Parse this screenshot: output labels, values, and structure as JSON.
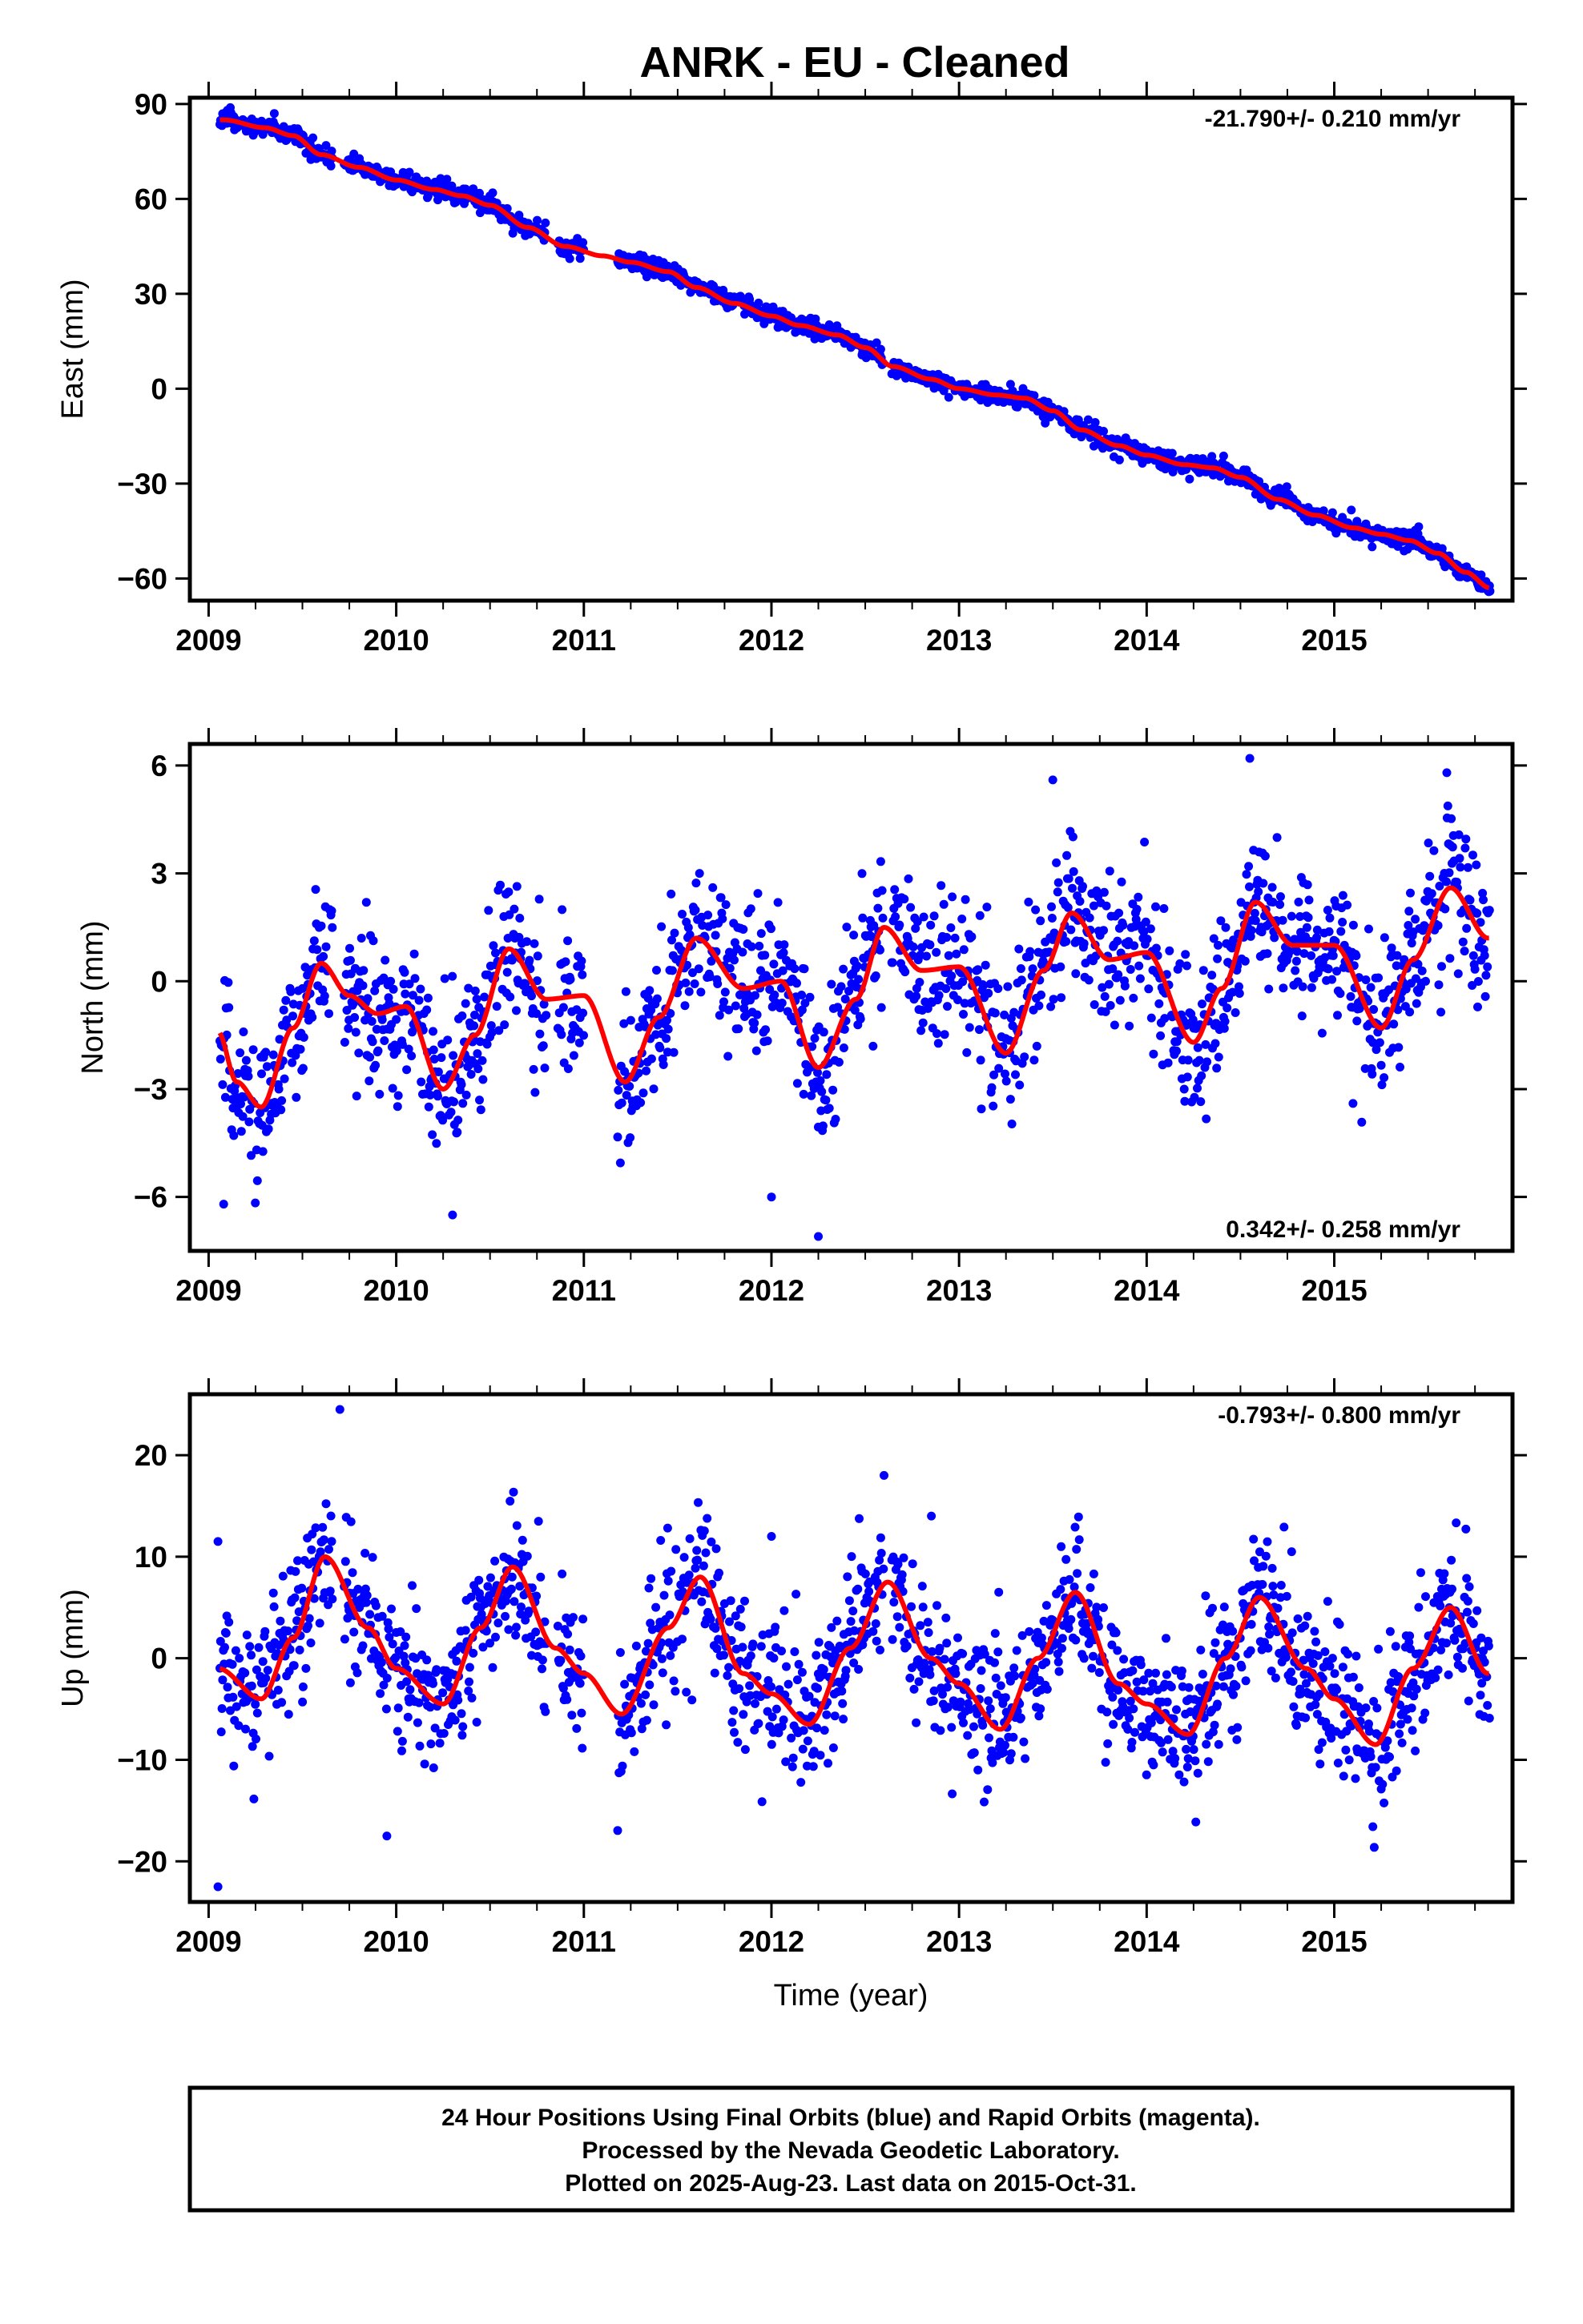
{
  "chart_data": {
    "type": "scatter",
    "title": "ANRK  - EU - Cleaned",
    "xlabel": "Time (year)",
    "xlim": [
      2008.9,
      2015.95
    ],
    "x_ticks": [
      "2009",
      "2010",
      "2011",
      "2012",
      "2013",
      "2014",
      "2015"
    ],
    "colors": {
      "points": "#0000ff",
      "fit": "#ff0000",
      "axes": "#000000"
    },
    "panels": [
      {
        "name": "east",
        "ylabel": "East (mm)",
        "ylim": [
          -67,
          92
        ],
        "y_ticks": [
          90,
          60,
          30,
          0,
          -30,
          -60
        ],
        "y_tick_labels": [
          "90",
          "60",
          "30",
          "0",
          "−30",
          "−60"
        ],
        "rate": "-21.790+/- 0.210 mm/yr",
        "rate_position": "top-right",
        "fit_knots": [
          [
            2009.08,
            85
          ],
          [
            2009.3,
            82.5
          ],
          [
            2009.45,
            80
          ],
          [
            2009.6,
            74
          ],
          [
            2009.8,
            70
          ],
          [
            2010.0,
            66
          ],
          [
            2010.2,
            63
          ],
          [
            2010.35,
            61
          ],
          [
            2010.5,
            58
          ],
          [
            2010.7,
            51
          ],
          [
            2010.9,
            45
          ],
          [
            2011.1,
            42
          ],
          [
            2011.25,
            40
          ],
          [
            2011.45,
            37
          ],
          [
            2011.6,
            32
          ],
          [
            2011.8,
            27
          ],
          [
            2012.0,
            23
          ],
          [
            2012.15,
            20
          ],
          [
            2012.35,
            17
          ],
          [
            2012.5,
            13
          ],
          [
            2012.65,
            7
          ],
          [
            2012.85,
            3
          ],
          [
            2013.0,
            0
          ],
          [
            2013.2,
            -2
          ],
          [
            2013.35,
            -3
          ],
          [
            2013.5,
            -7
          ],
          [
            2013.65,
            -13
          ],
          [
            2013.85,
            -18
          ],
          [
            2014.0,
            -21
          ],
          [
            2014.2,
            -24
          ],
          [
            2014.35,
            -25
          ],
          [
            2014.5,
            -28
          ],
          [
            2014.7,
            -35
          ],
          [
            2014.9,
            -40
          ],
          [
            2015.1,
            -44
          ],
          [
            2015.25,
            -46
          ],
          [
            2015.4,
            -48
          ],
          [
            2015.55,
            -52
          ],
          [
            2015.7,
            -58
          ],
          [
            2015.83,
            -63
          ]
        ],
        "noise": 1.4,
        "outliers": [
          [
            2009.1,
            88
          ],
          [
            2009.35,
            87
          ],
          [
            2013.6,
            -11
          ],
          [
            2015.83,
            -64
          ]
        ]
      },
      {
        "name": "north",
        "ylabel": "North (mm)",
        "ylim": [
          -7.5,
          6.6
        ],
        "y_ticks": [
          6,
          3,
          0,
          -3,
          -6
        ],
        "y_tick_labels": [
          "6",
          "3",
          "0",
          "−3",
          "−6"
        ],
        "rate": "0.342+/- 0.258 mm/yr",
        "rate_position": "bottom-right",
        "fit_knots": [
          [
            2009.05,
            -1.4
          ],
          [
            2009.15,
            -2.8
          ],
          [
            2009.28,
            -3.5
          ],
          [
            2009.45,
            -1.3
          ],
          [
            2009.6,
            0.5
          ],
          [
            2009.75,
            -0.4
          ],
          [
            2009.9,
            -0.9
          ],
          [
            2010.05,
            -0.7
          ],
          [
            2010.25,
            -3.0
          ],
          [
            2010.42,
            -1.5
          ],
          [
            2010.6,
            0.9
          ],
          [
            2010.8,
            -0.5
          ],
          [
            2011.0,
            -0.4
          ],
          [
            2011.22,
            -2.8
          ],
          [
            2011.4,
            -1.0
          ],
          [
            2011.6,
            1.2
          ],
          [
            2011.85,
            -0.2
          ],
          [
            2012.05,
            0.0
          ],
          [
            2012.25,
            -2.4
          ],
          [
            2012.45,
            -0.5
          ],
          [
            2012.6,
            1.5
          ],
          [
            2012.8,
            0.3
          ],
          [
            2013.0,
            0.4
          ],
          [
            2013.25,
            -2.0
          ],
          [
            2013.45,
            0.3
          ],
          [
            2013.6,
            1.9
          ],
          [
            2013.8,
            0.6
          ],
          [
            2014.0,
            0.8
          ],
          [
            2014.25,
            -1.7
          ],
          [
            2014.4,
            -0.2
          ],
          [
            2014.58,
            2.2
          ],
          [
            2014.78,
            1.0
          ],
          [
            2015.0,
            1.0
          ],
          [
            2015.25,
            -1.3
          ],
          [
            2015.42,
            0.6
          ],
          [
            2015.62,
            2.6
          ],
          [
            2015.82,
            1.2
          ]
        ],
        "noise": 1.0,
        "outliers": [
          [
            2009.08,
            -6.2
          ],
          [
            2010.3,
            -6.5
          ],
          [
            2012.0,
            -6.0
          ],
          [
            2012.25,
            -7.1
          ],
          [
            2013.5,
            5.6
          ],
          [
            2014.55,
            6.2
          ],
          [
            2015.6,
            5.8
          ],
          [
            2015.1,
            -3.4
          ],
          [
            2014.2,
            -3.0
          ]
        ]
      },
      {
        "name": "up",
        "ylabel": "Up (mm)",
        "ylim": [
          -24,
          26
        ],
        "y_ticks": [
          20,
          10,
          0,
          -10,
          -20
        ],
        "y_tick_labels": [
          "20",
          "10",
          "0",
          "−10",
          "−20"
        ],
        "rate": "-0.793+/- 0.800 mm/yr",
        "rate_position": "top-right",
        "fit_knots": [
          [
            2009.05,
            -1.0
          ],
          [
            2009.28,
            -4.0
          ],
          [
            2009.45,
            2.0
          ],
          [
            2009.62,
            10.0
          ],
          [
            2009.85,
            3.0
          ],
          [
            2010.0,
            -1.0
          ],
          [
            2010.25,
            -4.5
          ],
          [
            2010.45,
            3.0
          ],
          [
            2010.62,
            9.0
          ],
          [
            2010.85,
            1.0
          ],
          [
            2011.0,
            -1.5
          ],
          [
            2011.2,
            -5.5
          ],
          [
            2011.45,
            3.0
          ],
          [
            2011.62,
            8.0
          ],
          [
            2011.85,
            -1.5
          ],
          [
            2012.0,
            -3.5
          ],
          [
            2012.2,
            -6.5
          ],
          [
            2012.42,
            1.0
          ],
          [
            2012.62,
            7.5
          ],
          [
            2012.85,
            0.0
          ],
          [
            2013.0,
            -2.5
          ],
          [
            2013.22,
            -7.0
          ],
          [
            2013.42,
            0.0
          ],
          [
            2013.62,
            6.5
          ],
          [
            2013.85,
            -2.5
          ],
          [
            2014.0,
            -4.5
          ],
          [
            2014.22,
            -7.5
          ],
          [
            2014.42,
            0.0
          ],
          [
            2014.6,
            6.0
          ],
          [
            2014.85,
            -1.0
          ],
          [
            2015.0,
            -4.0
          ],
          [
            2015.22,
            -8.5
          ],
          [
            2015.42,
            -1.0
          ],
          [
            2015.62,
            5.0
          ],
          [
            2015.82,
            -1.5
          ]
        ],
        "noise": 3.5,
        "outliers": [
          [
            2009.05,
            -22.5
          ],
          [
            2009.7,
            24.5
          ],
          [
            2009.95,
            -17.5
          ],
          [
            2012.6,
            18.0
          ],
          [
            2009.05,
            11.5
          ],
          [
            2012.0,
            12.0
          ]
        ]
      }
    ]
  },
  "caption": {
    "line1": "24 Hour Positions Using Final Orbits (blue) and Rapid Orbits (magenta).",
    "line2": "Processed by the Nevada Geodetic Laboratory.",
    "line3": "Plotted on 2025-Aug-23. Last data on 2015-Oct-31."
  }
}
